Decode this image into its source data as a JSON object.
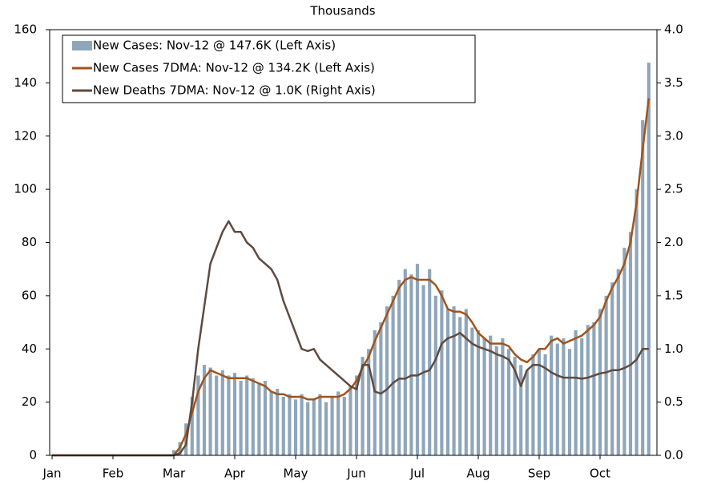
{
  "chart_data": {
    "type": "bar_line_dual_axis",
    "title": "Thousands",
    "categories": [
      "Jan",
      null,
      null,
      null,
      null,
      null,
      null,
      null,
      null,
      null,
      "Feb",
      null,
      null,
      null,
      null,
      null,
      null,
      null,
      null,
      null,
      "Mar",
      null,
      null,
      null,
      null,
      null,
      null,
      null,
      null,
      null,
      "Apr",
      null,
      null,
      null,
      null,
      null,
      null,
      null,
      null,
      null,
      "May",
      null,
      null,
      null,
      null,
      null,
      null,
      null,
      null,
      null,
      "Jun",
      null,
      null,
      null,
      null,
      null,
      null,
      null,
      null,
      null,
      "Jul",
      null,
      null,
      null,
      null,
      null,
      null,
      null,
      null,
      null,
      "Aug",
      null,
      null,
      null,
      null,
      null,
      null,
      null,
      null,
      null,
      "Sep",
      null,
      null,
      null,
      null,
      null,
      null,
      null,
      null,
      null,
      "Oct",
      null,
      null,
      null,
      null,
      null,
      null,
      null,
      null
    ],
    "series": [
      {
        "name": "New Cases: Nov-12 @ 147.6K (Left Axis)",
        "kind": "bar",
        "color": "#8fa6ba",
        "axis": "y",
        "values": [
          0,
          0,
          0,
          0,
          0,
          0,
          0,
          0,
          0,
          0,
          0,
          0,
          0,
          0,
          0,
          0,
          0,
          0,
          0,
          0,
          2,
          5,
          12,
          22,
          30,
          34,
          33,
          30,
          32,
          30,
          31,
          28,
          30,
          29,
          27,
          28,
          24,
          25,
          22,
          23,
          21,
          23,
          20,
          21,
          23,
          20,
          22,
          24,
          22,
          26,
          30,
          37,
          40,
          47,
          50,
          56,
          60,
          66,
          70,
          68,
          72,
          64,
          70,
          60,
          62,
          55,
          56,
          52,
          55,
          48,
          47,
          44,
          45,
          41,
          44,
          40,
          37,
          34,
          32,
          38,
          40,
          38,
          45,
          42,
          44,
          40,
          47,
          44,
          49,
          50,
          55,
          60,
          65,
          70,
          78,
          84,
          100,
          126,
          147.6
        ]
      },
      {
        "name": "New Cases 7DMA: Nov-12 @ 134.2K (Left Axis)",
        "kind": "line",
        "color": "#a0541c",
        "axis": "y",
        "values": [
          0,
          0,
          0,
          0,
          0,
          0,
          0,
          0,
          0,
          0,
          0,
          0,
          0,
          0,
          0,
          0,
          0,
          0,
          0,
          0,
          0,
          3,
          8,
          16,
          24,
          29,
          32,
          31,
          30,
          29,
          29,
          29,
          29,
          28,
          27,
          26,
          24,
          23,
          23,
          22,
          22,
          22,
          21,
          21,
          22,
          22,
          22,
          22,
          23,
          25,
          28,
          33,
          37,
          43,
          48,
          53,
          58,
          63,
          66,
          67,
          66,
          66,
          66,
          64,
          60,
          55,
          54,
          54,
          53,
          50,
          46,
          44,
          42,
          42,
          42,
          41,
          38,
          36,
          35,
          37,
          40,
          40,
          43,
          44,
          42,
          43,
          44,
          45,
          47,
          49,
          52,
          58,
          63,
          67,
          72,
          80,
          95,
          115,
          134.2
        ]
      },
      {
        "name": "New Deaths 7DMA: Nov-12 @ 1.0K (Right Axis)",
        "kind": "line",
        "color": "#5e4b40",
        "axis": "y2",
        "values": [
          0,
          0,
          0,
          0,
          0,
          0,
          0,
          0,
          0,
          0,
          0,
          0,
          0,
          0,
          0,
          0,
          0,
          0,
          0,
          0,
          0,
          0.02,
          0.1,
          0.5,
          1.0,
          1.4,
          1.8,
          1.95,
          2.1,
          2.2,
          2.1,
          2.1,
          2.0,
          1.95,
          1.85,
          1.8,
          1.75,
          1.65,
          1.45,
          1.3,
          1.15,
          1.0,
          0.98,
          1.0,
          0.9,
          0.85,
          0.8,
          0.75,
          0.7,
          0.65,
          0.62,
          0.85,
          0.85,
          0.6,
          0.58,
          0.62,
          0.68,
          0.72,
          0.72,
          0.75,
          0.75,
          0.78,
          0.8,
          0.9,
          1.05,
          1.1,
          1.12,
          1.15,
          1.1,
          1.05,
          1.02,
          1.0,
          0.98,
          0.95,
          0.93,
          0.9,
          0.8,
          0.65,
          0.8,
          0.85,
          0.85,
          0.82,
          0.78,
          0.75,
          0.73,
          0.73,
          0.73,
          0.72,
          0.73,
          0.75,
          0.77,
          0.78,
          0.8,
          0.8,
          0.82,
          0.85,
          0.9,
          1.0,
          1.0
        ]
      }
    ],
    "ylim": [
      0,
      160
    ],
    "yticks": [
      0,
      20,
      40,
      60,
      80,
      100,
      120,
      140,
      160
    ],
    "y2lim": [
      0,
      4
    ],
    "y2ticks": [
      {
        "value": 0,
        "label": "0.0"
      },
      {
        "value": 0.5,
        "label": "0.5"
      },
      {
        "value": 1,
        "label": "1.0"
      },
      {
        "value": 1.5,
        "label": "1.5"
      },
      {
        "value": 2,
        "label": "2.0"
      },
      {
        "value": 2.5,
        "label": "2.5"
      },
      {
        "value": 3,
        "label": "3.0"
      },
      {
        "value": 3.5,
        "label": "3.5"
      },
      {
        "value": 4,
        "label": "4.0"
      }
    ],
    "legend": "upper left",
    "grid": false
  }
}
